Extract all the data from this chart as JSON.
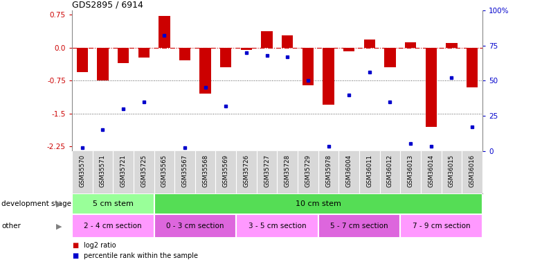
{
  "title": "GDS2895 / 6914",
  "samples": [
    "GSM35570",
    "GSM35571",
    "GSM35721",
    "GSM35725",
    "GSM35565",
    "GSM35567",
    "GSM35568",
    "GSM35569",
    "GSM35726",
    "GSM35727",
    "GSM35728",
    "GSM35729",
    "GSM35978",
    "GSM36004",
    "GSM36011",
    "GSM36012",
    "GSM36013",
    "GSM36014",
    "GSM36015",
    "GSM36016"
  ],
  "log2_ratio": [
    -0.55,
    -0.75,
    -0.35,
    -0.22,
    0.72,
    -0.28,
    -1.05,
    -0.45,
    -0.05,
    0.38,
    0.28,
    -0.85,
    -1.3,
    -0.08,
    0.18,
    -0.45,
    0.12,
    -1.8,
    0.1,
    -0.9
  ],
  "percentile": [
    2,
    15,
    30,
    35,
    82,
    2,
    45,
    32,
    70,
    68,
    67,
    50,
    3,
    40,
    56,
    35,
    5,
    3,
    52,
    17
  ],
  "ylim": [
    -2.35,
    0.85
  ],
  "yticks_left": [
    0.75,
    0.0,
    -0.75,
    -1.5,
    -2.25
  ],
  "yticks_right": [
    100,
    75,
    50,
    25,
    0
  ],
  "bar_color": "#cc0000",
  "dot_color": "#0000cc",
  "development_stage_groups": [
    {
      "label": "5 cm stem",
      "start": 0,
      "end": 3,
      "color": "#99ff99"
    },
    {
      "label": "10 cm stem",
      "start": 4,
      "end": 19,
      "color": "#55dd55"
    }
  ],
  "other_groups": [
    {
      "label": "2 - 4 cm section",
      "start": 0,
      "end": 3,
      "color": "#ff99ff"
    },
    {
      "label": "0 - 3 cm section",
      "start": 4,
      "end": 7,
      "color": "#dd66dd"
    },
    {
      "label": "3 - 5 cm section",
      "start": 8,
      "end": 11,
      "color": "#ff99ff"
    },
    {
      "label": "5 - 7 cm section",
      "start": 12,
      "end": 15,
      "color": "#dd66dd"
    },
    {
      "label": "7 - 9 cm section",
      "start": 16,
      "end": 19,
      "color": "#ff99ff"
    }
  ],
  "legend_red": "log2 ratio",
  "legend_blue": "percentile rank within the sample",
  "dev_stage_label": "development stage",
  "other_label": "other"
}
